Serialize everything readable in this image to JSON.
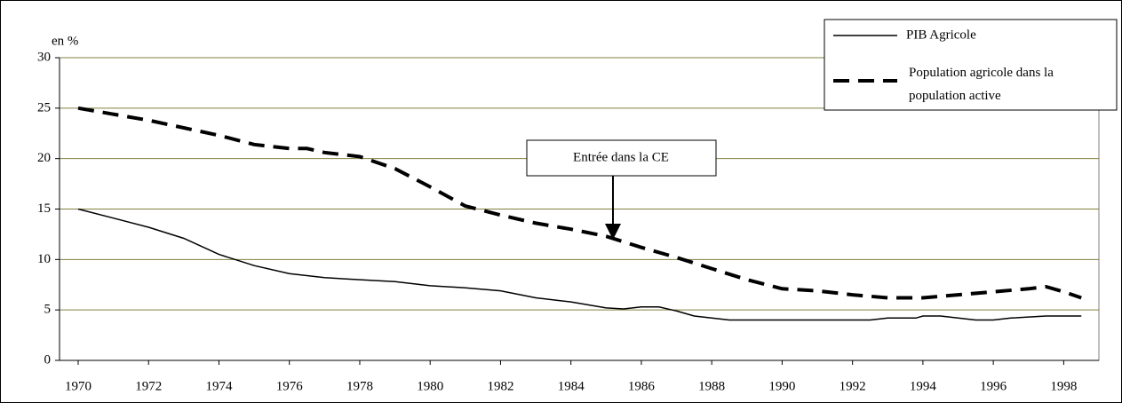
{
  "chart_data": {
    "type": "line",
    "y_label": "en %",
    "xlim": [
      1969.47,
      1999
    ],
    "xticks": [
      1970,
      1972,
      1974,
      1976,
      1978,
      1980,
      1982,
      1984,
      1986,
      1988,
      1990,
      1992,
      1994,
      1996,
      1998
    ],
    "ylim": [
      0,
      30
    ],
    "yticks": [
      0,
      5,
      10,
      15,
      20,
      25,
      30
    ],
    "grid": true,
    "legend": "top-right",
    "annotation": "Entrée dans la CE",
    "series": [
      {
        "name": "PIB Agricole",
        "color": "#000000",
        "dash": "solid",
        "x": [
          1970,
          1971,
          1972,
          1973,
          1974,
          1975,
          1976,
          1977,
          1978,
          1979,
          1980,
          1981,
          1982,
          1983,
          1984,
          1985,
          1985.5,
          1986,
          1986.5,
          1987,
          1987.5,
          1988,
          1988.5,
          1992.5,
          1993,
          1993.8,
          1994,
          1994.5,
          1995.5,
          1996,
          1996.5,
          1997.5,
          1998.5
        ],
        "values": [
          15,
          14.1,
          13.2,
          12.1,
          10.5,
          9.4,
          8.6,
          8.2,
          8.0,
          7.8,
          7.4,
          7.2,
          6.9,
          6.2,
          5.8,
          5.2,
          5.1,
          5.3,
          5.3,
          4.9,
          4.4,
          4.2,
          4.0,
          4.0,
          4.2,
          4.2,
          4.4,
          4.4,
          4.0,
          4.0,
          4.2,
          4.4,
          4.4
        ]
      },
      {
        "name": "Population agricole dans la population active",
        "color": "#000000",
        "dash": "dashed",
        "x": [
          1970,
          1972,
          1974,
          1975,
          1976,
          1976.5,
          1977,
          1978,
          1979,
          1980,
          1981,
          1982,
          1983,
          1984,
          1985,
          1986,
          1987,
          1988,
          1989,
          1990,
          1991,
          1992,
          1993,
          1994,
          1995,
          1996,
          1997,
          1997.5,
          1998,
          1998.5
        ],
        "values": [
          25,
          23.8,
          22.3,
          21.4,
          21,
          21,
          20.6,
          20.2,
          19,
          17.2,
          15.3,
          14.4,
          13.6,
          13,
          12.3,
          11.2,
          10.2,
          9.1,
          8,
          7.1,
          6.9,
          6.5,
          6.2,
          6.2,
          6.5,
          6.8,
          7.1,
          7.3,
          6.8,
          6.2
        ]
      }
    ]
  }
}
